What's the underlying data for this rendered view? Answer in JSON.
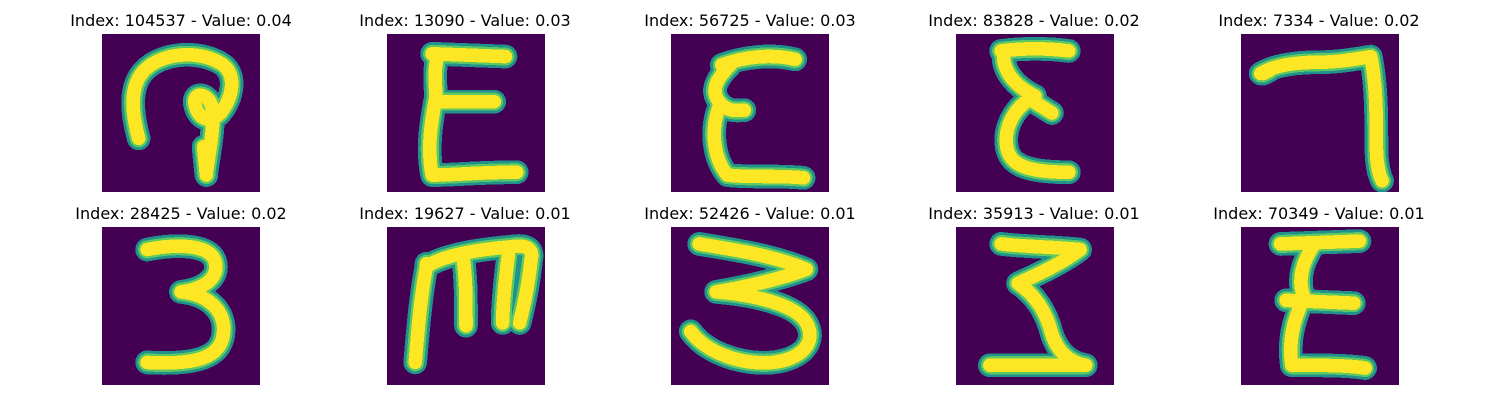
{
  "colors": {
    "background": "#440154",
    "stroke": "#fde725",
    "stroke_edge": "#21918c",
    "stroke_mid": "#5ec962"
  },
  "panels": [
    {
      "title": "Index: 104537 - Value: 0.04"
    },
    {
      "title": "Index: 13090 - Value: 0.03"
    },
    {
      "title": "Index: 56725 - Value: 0.03"
    },
    {
      "title": "Index: 83828 - Value: 0.02"
    },
    {
      "title": "Index: 7334 - Value: 0.02"
    },
    {
      "title": "Index: 28425 - Value: 0.02"
    },
    {
      "title": "Index: 19627 - Value: 0.01"
    },
    {
      "title": "Index: 52426 - Value: 0.01"
    },
    {
      "title": "Index: 35913 - Value: 0.01"
    },
    {
      "title": "Index: 70349 - Value: 0.01"
    }
  ]
}
